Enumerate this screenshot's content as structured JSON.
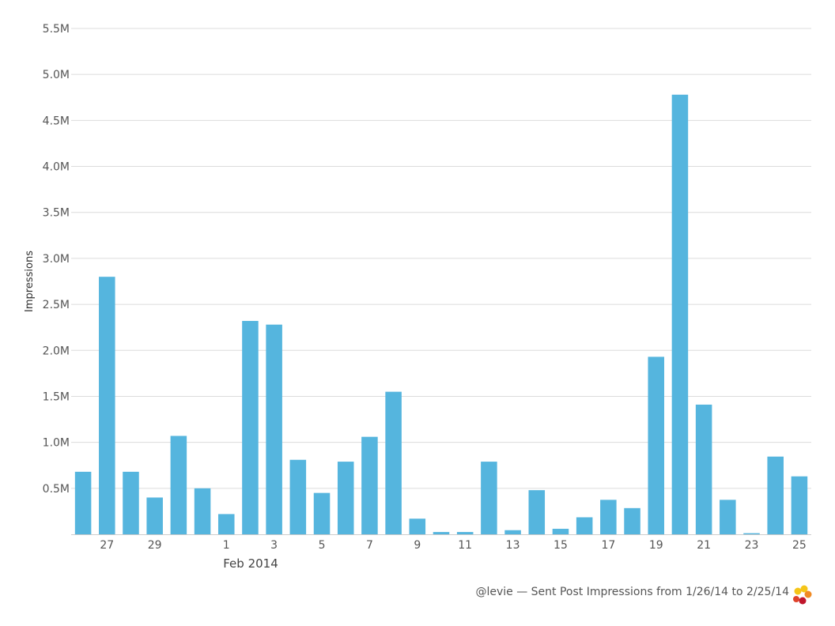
{
  "chart_data": {
    "type": "bar",
    "title": "",
    "xlabel": "",
    "ylabel": "Impressions",
    "ylim": [
      0,
      5500000
    ],
    "yticks": [
      500000,
      1000000,
      1500000,
      2000000,
      2500000,
      3000000,
      3500000,
      4000000,
      4500000,
      5000000,
      5500000
    ],
    "ytick_labels": [
      "0.5M",
      "1.0M",
      "1.5M",
      "2.0M",
      "2.5M",
      "3.0M",
      "3.5M",
      "4.0M",
      "4.5M",
      "5.0M",
      "5.5M"
    ],
    "grid": true,
    "bar_color": "#55b5de",
    "categories": [
      "2014-01-26",
      "2014-01-27",
      "2014-01-28",
      "2014-01-29",
      "2014-01-30",
      "2014-01-31",
      "2014-02-01",
      "2014-02-02",
      "2014-02-03",
      "2014-02-04",
      "2014-02-05",
      "2014-02-06",
      "2014-02-07",
      "2014-02-08",
      "2014-02-09",
      "2014-02-10",
      "2014-02-11",
      "2014-02-12",
      "2014-02-13",
      "2014-02-14",
      "2014-02-15",
      "2014-02-16",
      "2014-02-17",
      "2014-02-18",
      "2014-02-19",
      "2014-02-20",
      "2014-02-21",
      "2014-02-22",
      "2014-02-23",
      "2014-02-24",
      "2014-02-25"
    ],
    "values": [
      680000,
      2800000,
      680000,
      400000,
      1070000,
      500000,
      220000,
      2320000,
      2280000,
      810000,
      450000,
      790000,
      1060000,
      1550000,
      170000,
      25000,
      25000,
      790000,
      45000,
      480000,
      60000,
      185000,
      375000,
      285000,
      1930000,
      4780000,
      1410000,
      375000,
      12000,
      845000,
      630000
    ],
    "xtick_labels": [
      {
        "index": 1,
        "label": "27"
      },
      {
        "index": 3,
        "label": "29"
      },
      {
        "index": 6,
        "label": "1"
      },
      {
        "index": 8,
        "label": "3"
      },
      {
        "index": 10,
        "label": "5"
      },
      {
        "index": 12,
        "label": "7"
      },
      {
        "index": 14,
        "label": "9"
      },
      {
        "index": 16,
        "label": "11"
      },
      {
        "index": 18,
        "label": "13"
      },
      {
        "index": 20,
        "label": "15"
      },
      {
        "index": 22,
        "label": "17"
      },
      {
        "index": 24,
        "label": "19"
      },
      {
        "index": 26,
        "label": "21"
      },
      {
        "index": 28,
        "label": "23"
      },
      {
        "index": 30,
        "label": "25"
      }
    ],
    "month_label": {
      "index": 6,
      "label": "Feb 2014"
    }
  },
  "caption": "@levie — Sent Post Impressions from 1/26/14 to 2/25/14",
  "logo_icon": "flower-logo-icon",
  "logo_colors": [
    "#f5c518",
    "#f08a24",
    "#e0432b",
    "#c0162c"
  ]
}
